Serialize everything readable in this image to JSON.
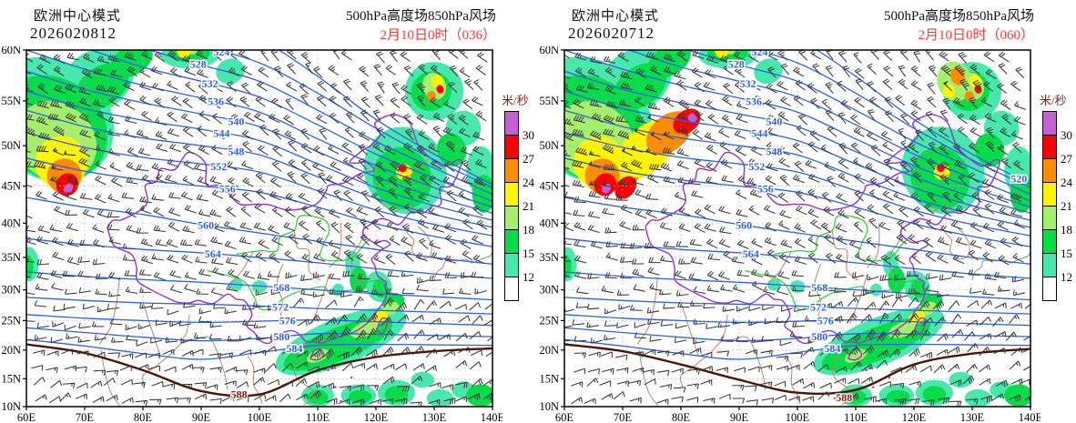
{
  "panels": [
    {
      "model_name": "欧洲中心模式",
      "run_label": "2026020812",
      "product_title": "500hPa高度场850hPa风场",
      "valid_label": "2月10日0时（036）"
    },
    {
      "model_name": "欧洲中心模式",
      "run_label": "2026020712",
      "product_title": "500hPa高度场850hPa风场",
      "valid_label": "2月10日0时（060）"
    }
  ],
  "legend": {
    "title": "米/秒",
    "boundary_labels": [
      "30",
      "27",
      "24",
      "21",
      "18",
      "15",
      "12"
    ],
    "band_colors_top_to_bottom": [
      "#c45fd4",
      "#fb0007",
      "#ff8b00",
      "#fff500",
      "#a6ef6d",
      "#09dc4b",
      "#47e8ac",
      "#ffffff"
    ]
  },
  "axes": {
    "x_tick_labels": [
      "60E",
      "70E",
      "80E",
      "90E",
      "100E",
      "110E",
      "120E",
      "130E",
      "140E"
    ],
    "y_tick_labels": [
      "60N",
      "55N",
      "50N",
      "45N",
      "40N",
      "35N",
      "30N",
      "25N",
      "20N",
      "15N",
      "10N"
    ]
  },
  "colors": {
    "height_contour": "#2f5ff0",
    "subtropical_high_588": "#4a1505",
    "label_588": "#8b1a00",
    "national_border": "#9a2fd6",
    "river": "#2fd02f",
    "province_coast": "#b4876a",
    "wind_barb": "#383838",
    "gridline": "#b5b5b5",
    "valid_text": "#fb3b3b",
    "legend_title": "#8b2323"
  },
  "chart_data": {
    "type": "heatmap",
    "title": "500hPa高度场850hPa风场",
    "model": "欧洲中心模式",
    "projection": "mercator",
    "lon_range": [
      60,
      140
    ],
    "lat_range": [
      10,
      60
    ],
    "grid_interval": {
      "lon_deg": 10,
      "lat_deg": 5
    },
    "legend_position": "right",
    "height_contour_values_dagpm": [
      520,
      524,
      528,
      532,
      536,
      540,
      544,
      548,
      552,
      556,
      560,
      564,
      568,
      572,
      576,
      580,
      584,
      588
    ],
    "wind_speed_shading_levels_ms": [
      12,
      15,
      18,
      21,
      24,
      27,
      30
    ],
    "panels": [
      {
        "run": "2026020812",
        "forecast_hour": 36,
        "valid_time": "2月10日0时",
        "contour_labels": [
          {
            "value": 524,
            "lon": 93.5,
            "lat": 59.8
          },
          {
            "value": 528,
            "lon": 89.5,
            "lat": 58.7
          },
          {
            "value": 532,
            "lon": 91.5,
            "lat": 56.8
          },
          {
            "value": 536,
            "lon": 92.5,
            "lat": 54.9
          },
          {
            "value": 540,
            "lon": 96.0,
            "lat": 52.8
          },
          {
            "value": 544,
            "lon": 93.5,
            "lat": 51.4
          },
          {
            "value": 548,
            "lon": 96.0,
            "lat": 49.3
          },
          {
            "value": 552,
            "lon": 93.0,
            "lat": 47.5
          },
          {
            "value": 556,
            "lon": 94.5,
            "lat": 44.6
          },
          {
            "value": 560,
            "lon": 90.8,
            "lat": 39.7
          },
          {
            "value": 564,
            "lon": 92.0,
            "lat": 35.6
          },
          {
            "value": 568,
            "lon": 103.8,
            "lat": 30.4
          },
          {
            "value": 572,
            "lon": 103.6,
            "lat": 27.6
          },
          {
            "value": 576,
            "lon": 104.8,
            "lat": 24.8
          },
          {
            "value": 580,
            "lon": 103.8,
            "lat": 21.8
          },
          {
            "value": 584,
            "lon": 106.0,
            "lat": 20.3
          }
        ],
        "label_588": {
          "lon": 96.5,
          "lat": 12.2
        },
        "jet_max_regions": [
          {
            "lon": 67,
            "lat": 45,
            "speed_ms": "30+"
          }
        ]
      },
      {
        "run": "2026020712",
        "forecast_hour": 60,
        "valid_time": "2月10日0时",
        "contour_labels": [
          {
            "value": 520,
            "lon": 138.0,
            "lat": 45.5
          },
          {
            "value": 524,
            "lon": 93.5,
            "lat": 59.8
          },
          {
            "value": 528,
            "lon": 89.5,
            "lat": 58.7
          },
          {
            "value": 532,
            "lon": 91.5,
            "lat": 56.8
          },
          {
            "value": 536,
            "lon": 92.5,
            "lat": 54.9
          },
          {
            "value": 540,
            "lon": 96.0,
            "lat": 52.8
          },
          {
            "value": 544,
            "lon": 93.5,
            "lat": 51.4
          },
          {
            "value": 548,
            "lon": 96.0,
            "lat": 49.3
          },
          {
            "value": 552,
            "lon": 93.0,
            "lat": 47.5
          },
          {
            "value": 556,
            "lon": 94.5,
            "lat": 44.6
          },
          {
            "value": 560,
            "lon": 90.8,
            "lat": 39.7
          },
          {
            "value": 564,
            "lon": 92.0,
            "lat": 35.6
          },
          {
            "value": 568,
            "lon": 103.8,
            "lat": 30.4
          },
          {
            "value": 572,
            "lon": 103.6,
            "lat": 27.6
          },
          {
            "value": 576,
            "lon": 104.8,
            "lat": 24.8
          },
          {
            "value": 580,
            "lon": 103.8,
            "lat": 21.8
          },
          {
            "value": 584,
            "lon": 106.0,
            "lat": 20.3
          }
        ],
        "label_588": {
          "lon": 108.0,
          "lat": 11.6
        },
        "jet_max_regions": [
          {
            "lon": 67,
            "lat": 45,
            "speed_ms": "30+"
          },
          {
            "lon": 81,
            "lat": 53,
            "speed_ms": "27-30"
          }
        ]
      }
    ]
  }
}
